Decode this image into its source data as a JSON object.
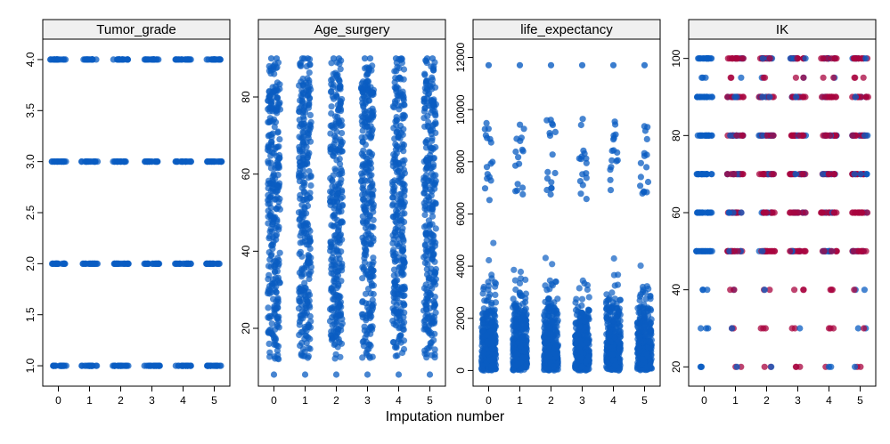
{
  "chart_data": {
    "type": "scatter",
    "xlabel": "Imputation number",
    "colors": {
      "observed": "#0a5cc2",
      "imputed": "#a8043f",
      "strip": "#f0f0f0"
    },
    "panels": [
      {
        "title": "Tumor_grade",
        "ylim": [
          0.8,
          4.2
        ],
        "yticks": [
          1.0,
          1.5,
          2.0,
          2.5,
          3.0,
          3.5,
          4.0
        ],
        "ytick_labels": [
          "1.0",
          "1.5",
          "2.0",
          "2.5",
          "3.0",
          "3.5",
          "4.0"
        ],
        "xticks": [
          0,
          1,
          2,
          3,
          4,
          5
        ],
        "distribution": "discrete",
        "levels": [
          1,
          2,
          3,
          4
        ],
        "has_imputed": false
      },
      {
        "title": "Age_surgery",
        "ylim": [
          5,
          95
        ],
        "yticks": [
          20,
          40,
          60,
          80
        ],
        "ytick_labels": [
          "20",
          "40",
          "60",
          "80"
        ],
        "xticks": [
          0,
          1,
          2,
          3,
          4,
          5
        ],
        "distribution": "continuous",
        "range": [
          8,
          90
        ],
        "dense_range": [
          18,
          84
        ],
        "has_imputed": false
      },
      {
        "title": "life_expectancy",
        "ylim": [
          -600,
          12700
        ],
        "yticks": [
          0,
          2000,
          4000,
          6000,
          8000,
          10000,
          12000
        ],
        "ytick_labels": [
          "0",
          "2000",
          "4000",
          "6000",
          "8000",
          "10000",
          "12000"
        ],
        "xticks": [
          0,
          1,
          2,
          3,
          4,
          5
        ],
        "distribution": "skewed",
        "range": [
          0,
          11700
        ],
        "outlier": 11700,
        "has_imputed": false
      },
      {
        "title": "IK",
        "ylim": [
          15,
          105
        ],
        "yticks": [
          20,
          40,
          60,
          80,
          100
        ],
        "ytick_labels": [
          "20",
          "40",
          "60",
          "80",
          "100"
        ],
        "xticks": [
          0,
          1,
          2,
          3,
          4,
          5
        ],
        "distribution": "discrete",
        "levels": [
          20,
          30,
          40,
          50,
          60,
          70,
          80,
          90,
          95,
          100
        ],
        "sparse_levels": [
          20,
          30,
          40,
          95
        ],
        "has_imputed": true
      }
    ]
  }
}
